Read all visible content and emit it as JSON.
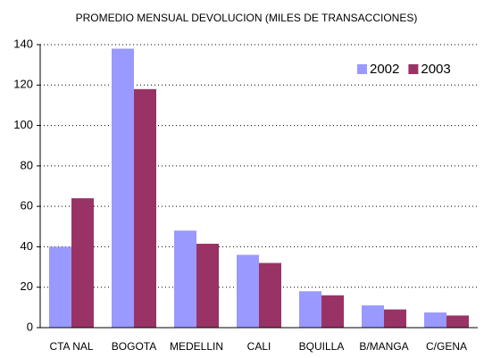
{
  "chart_data": {
    "type": "bar",
    "title": "PROMEDIO MENSUAL DEVOLUCION (MILES DE TRANSACCIONES)",
    "categories": [
      "CTA NAL",
      "BOGOTA",
      "MEDELLIN",
      "CALI",
      "BQUILLA",
      "B/MANGA",
      "C/GENA"
    ],
    "series": [
      {
        "name": "2002",
        "color": "#9999ff",
        "values": [
          40,
          138,
          48,
          36,
          18,
          11,
          7.5
        ]
      },
      {
        "name": "2003",
        "color": "#993366",
        "values": [
          64,
          118,
          41.5,
          32,
          16,
          9,
          6
        ]
      }
    ],
    "ylim": [
      0,
      140
    ],
    "yticks": [
      0,
      20,
      40,
      60,
      80,
      100,
      120,
      140
    ],
    "grid": true,
    "legend": "upper right"
  }
}
